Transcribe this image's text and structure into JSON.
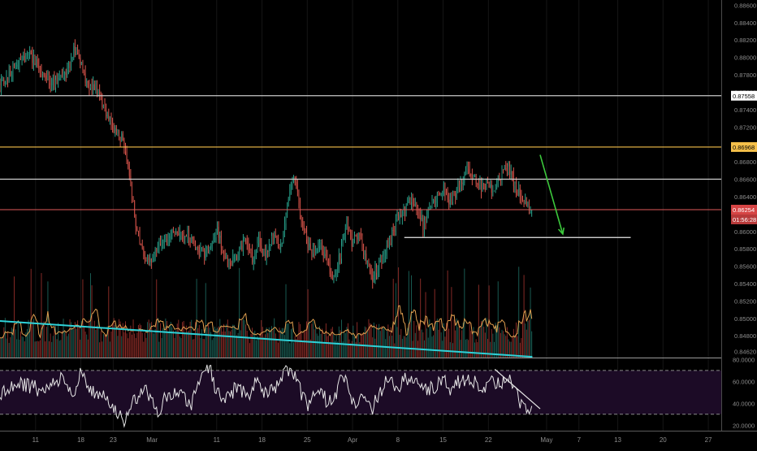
{
  "chart_data": [
    {
      "type": "candlestick",
      "title": "",
      "ylim": [
        0.8455,
        0.8866
      ],
      "y_ticks": [
        "0.88600",
        "0.88400",
        "0.88200",
        "0.88000",
        "0.87800",
        "0.87600",
        "0.87400",
        "0.87200",
        "0.87000",
        "0.86800",
        "0.86600",
        "0.86400",
        "0.86200",
        "0.86000",
        "0.85800",
        "0.85600",
        "0.85400",
        "0.85200",
        "0.85000",
        "0.84800",
        "0.84620"
      ],
      "y_tick_values": [
        0.886,
        0.884,
        0.882,
        0.88,
        0.878,
        0.876,
        0.874,
        0.872,
        0.87,
        0.868,
        0.866,
        0.864,
        0.862,
        0.86,
        0.858,
        0.856,
        0.854,
        0.852,
        0.85,
        0.848,
        0.8462
      ],
      "x_ticks": [
        "11",
        "18",
        "23",
        "Mar",
        "11",
        "18",
        "25",
        "Apr",
        "8",
        "15",
        "22",
        "May",
        "7",
        "13",
        "20",
        "27"
      ],
      "x_tick_days": [
        0,
        7,
        12,
        18,
        28,
        35,
        42,
        49,
        56,
        63,
        70,
        79,
        84,
        90,
        97,
        104
      ],
      "x_range": [
        -5.5,
        106
      ],
      "price_path": [
        [
          -5.5,
          0.8768
        ],
        [
          -3,
          0.879
        ],
        [
          -1,
          0.8805
        ],
        [
          1,
          0.8782
        ],
        [
          3,
          0.877
        ],
        [
          5,
          0.8782
        ],
        [
          6,
          0.881
        ],
        [
          7,
          0.879
        ],
        [
          8,
          0.877
        ],
        [
          9.5,
          0.8765
        ],
        [
          11,
          0.873
        ],
        [
          12,
          0.8718
        ],
        [
          13.5,
          0.8705
        ],
        [
          14.5,
          0.8665
        ],
        [
          15.5,
          0.8605
        ],
        [
          16.5,
          0.858
        ],
        [
          17.5,
          0.8562
        ],
        [
          19,
          0.8585
        ],
        [
          21,
          0.86
        ],
        [
          23,
          0.8598
        ],
        [
          24,
          0.859
        ],
        [
          25,
          0.858
        ],
        [
          26,
          0.8572
        ],
        [
          27,
          0.858
        ],
        [
          28,
          0.8605
        ],
        [
          29,
          0.8575
        ],
        [
          30,
          0.856
        ],
        [
          31,
          0.8575
        ],
        [
          32.5,
          0.859
        ],
        [
          33.5,
          0.8568
        ],
        [
          34.5,
          0.859
        ],
        [
          35.5,
          0.857
        ],
        [
          37,
          0.86
        ],
        [
          38,
          0.858
        ],
        [
          39,
          0.864
        ],
        [
          40,
          0.866
        ],
        [
          41,
          0.862
        ],
        [
          42,
          0.8588
        ],
        [
          43,
          0.8575
        ],
        [
          44,
          0.8588
        ],
        [
          45,
          0.8565
        ],
        [
          46,
          0.8545
        ],
        [
          47,
          0.857
        ],
        [
          48,
          0.861
        ],
        [
          49,
          0.8585
        ],
        [
          50,
          0.86
        ],
        [
          51,
          0.857
        ],
        [
          52,
          0.8545
        ],
        [
          53,
          0.856
        ],
        [
          54,
          0.8572
        ],
        [
          55,
          0.8595
        ],
        [
          56,
          0.8615
        ],
        [
          57,
          0.862
        ],
        [
          58,
          0.864
        ],
        [
          59,
          0.8625
        ],
        [
          60,
          0.8605
        ],
        [
          61,
          0.863
        ],
        [
          62,
          0.864
        ],
        [
          63,
          0.865
        ],
        [
          64,
          0.8635
        ],
        [
          65,
          0.8645
        ],
        [
          66,
          0.866
        ],
        [
          67,
          0.8672
        ],
        [
          68,
          0.866
        ],
        [
          69,
          0.865
        ],
        [
          70,
          0.8655
        ],
        [
          71,
          0.8645
        ],
        [
          72,
          0.8665
        ],
        [
          73,
          0.8672
        ],
        [
          74,
          0.8655
        ],
        [
          75,
          0.864
        ],
        [
          76,
          0.863
        ],
        [
          76.8,
          0.8625
        ]
      ],
      "horizontal_levels": [
        {
          "value": 0.8756,
          "label": "0.87558",
          "color": "#c8c8c8",
          "kind": "line"
        },
        {
          "value": 0.8697,
          "label": "0.86968",
          "color": "#f5c04a",
          "kind": "line"
        },
        {
          "value": 0.866,
          "label": "",
          "color": "#d0d0d0",
          "kind": "line"
        },
        {
          "value": 0.8625,
          "label": "0.86254",
          "color": "#e05a5a",
          "kind": "price"
        }
      ],
      "countdown_label": "01:56:28",
      "support_segment": {
        "x_start": 57,
        "x_end": 92,
        "value": 0.8593,
        "color": "#e8e8e8"
      },
      "arrow": {
        "from_x": 78,
        "from_value": 0.8688,
        "to_x": 81.5,
        "to_value": 0.8597,
        "color": "#3cc83c"
      },
      "colors": {
        "up": "#1f8a78",
        "down": "#c54a42",
        "wick_up": "#2aa28c",
        "wick_down": "#d9564d",
        "grid": "#161616"
      },
      "volume": {
        "ma_color": "#e1a050",
        "trendline": {
          "from_x": -5.5,
          "from_level": 1.0,
          "to_x": 76.8,
          "to_level": 0.02,
          "color": "#2fd2d8"
        }
      }
    },
    {
      "type": "line",
      "title": "",
      "ylim": [
        15,
        81
      ],
      "y_ticks": [
        "80.0000",
        "60.0000",
        "40.0000",
        "20.0000"
      ],
      "y_tick_values": [
        80,
        60,
        40,
        20
      ],
      "bands": [
        70,
        30
      ],
      "rsi_path": [
        [
          -5.5,
          48
        ],
        [
          -2,
          58
        ],
        [
          1,
          52
        ],
        [
          4,
          62
        ],
        [
          6,
          45
        ],
        [
          7,
          68
        ],
        [
          9,
          50
        ],
        [
          11,
          44
        ],
        [
          12.5,
          33
        ],
        [
          13.5,
          22
        ],
        [
          15,
          40
        ],
        [
          17,
          58
        ],
        [
          18,
          40
        ],
        [
          19,
          28
        ],
        [
          20,
          45
        ],
        [
          22,
          50
        ],
        [
          24,
          38
        ],
        [
          26,
          66
        ],
        [
          27,
          72
        ],
        [
          28,
          50
        ],
        [
          29,
          40
        ],
        [
          31,
          55
        ],
        [
          33,
          45
        ],
        [
          34,
          58
        ],
        [
          36,
          48
        ],
        [
          38,
          62
        ],
        [
          39,
          72
        ],
        [
          40,
          68
        ],
        [
          41,
          50
        ],
        [
          42,
          38
        ],
        [
          44,
          55
        ],
        [
          45,
          42
        ],
        [
          46,
          40
        ],
        [
          47,
          60
        ],
        [
          48,
          62
        ],
        [
          49,
          40
        ],
        [
          51,
          44
        ],
        [
          52,
          35
        ],
        [
          53,
          48
        ],
        [
          54,
          58
        ],
        [
          56,
          56
        ],
        [
          58,
          65
        ],
        [
          60,
          52
        ],
        [
          62,
          54
        ],
        [
          63,
          66
        ],
        [
          64,
          52
        ],
        [
          66,
          62
        ],
        [
          68,
          58
        ],
        [
          70,
          56
        ],
        [
          71,
          60
        ],
        [
          72,
          54
        ],
        [
          73,
          66
        ],
        [
          74,
          52
        ],
        [
          75,
          40
        ],
        [
          76,
          38
        ],
        [
          76.8,
          36
        ]
      ],
      "line_color": "#e6e6e6",
      "bg_color": "#1c0b26",
      "trendline": {
        "from_x": 71,
        "from_value": 71,
        "to_x": 78,
        "to_value": 35,
        "color": "#e8e8e8"
      }
    }
  ]
}
